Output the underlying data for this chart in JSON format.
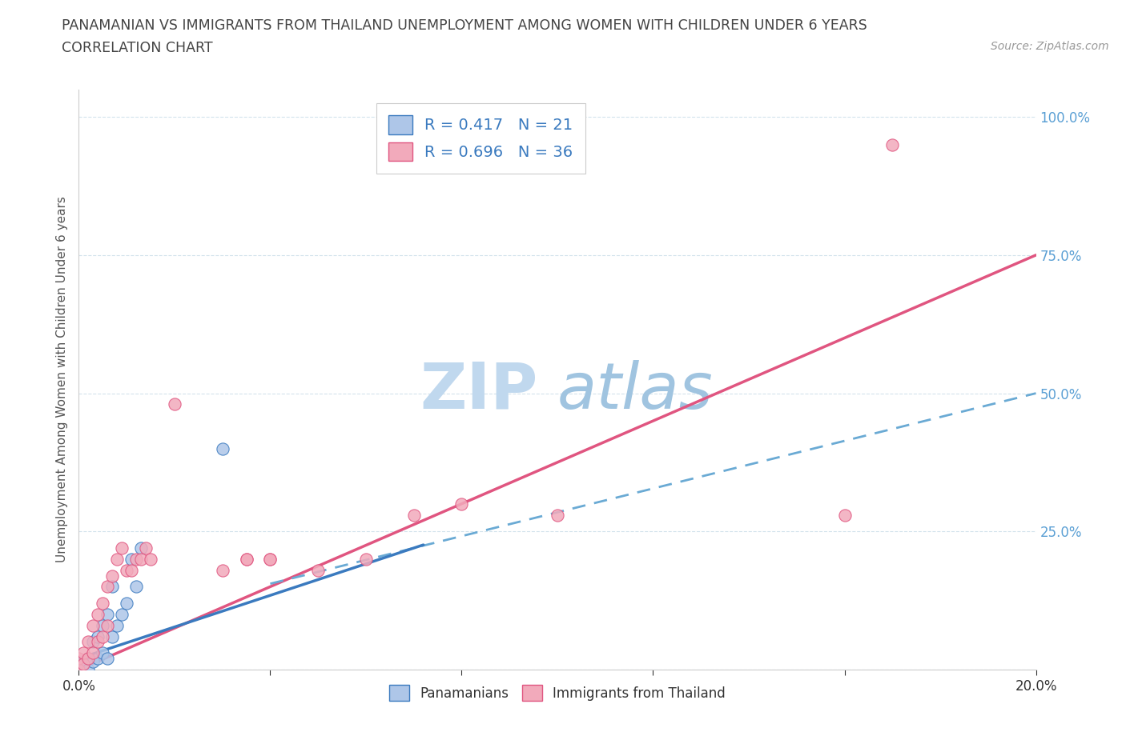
{
  "title_line1": "PANAMANIAN VS IMMIGRANTS FROM THAILAND UNEMPLOYMENT AMONG WOMEN WITH CHILDREN UNDER 6 YEARS",
  "title_line2": "CORRELATION CHART",
  "source": "Source: ZipAtlas.com",
  "ylabel": "Unemployment Among Women with Children Under 6 years",
  "xlim": [
    0.0,
    0.2
  ],
  "ylim": [
    0.0,
    1.05
  ],
  "blue_color": "#aec6e8",
  "pink_color": "#f2aabb",
  "blue_solid_color": "#3a7abf",
  "pink_line_color": "#e05580",
  "blue_dash_color": "#6aaad4",
  "watermark_zip_color": "#c8dff0",
  "watermark_atlas_color": "#a8c8e0",
  "legend_R_blue": "0.417",
  "legend_N_blue": "21",
  "legend_R_pink": "0.696",
  "legend_N_pink": "36",
  "pan_x": [
    0.0,
    0.001,
    0.002,
    0.002,
    0.003,
    0.003,
    0.004,
    0.004,
    0.005,
    0.005,
    0.006,
    0.006,
    0.007,
    0.007,
    0.008,
    0.009,
    0.01,
    0.011,
    0.012,
    0.013,
    0.03
  ],
  "pan_y": [
    0.0,
    0.01,
    0.0,
    0.02,
    0.015,
    0.05,
    0.02,
    0.06,
    0.03,
    0.08,
    0.02,
    0.1,
    0.06,
    0.15,
    0.08,
    0.1,
    0.12,
    0.2,
    0.15,
    0.22,
    0.4
  ],
  "thai_x": [
    0.0,
    0.0,
    0.001,
    0.001,
    0.002,
    0.002,
    0.003,
    0.003,
    0.004,
    0.004,
    0.005,
    0.005,
    0.006,
    0.006,
    0.007,
    0.008,
    0.009,
    0.01,
    0.011,
    0.012,
    0.013,
    0.014,
    0.015,
    0.02,
    0.03,
    0.035,
    0.035,
    0.04,
    0.04,
    0.05,
    0.06,
    0.07,
    0.08,
    0.1,
    0.16,
    0.17
  ],
  "thai_y": [
    0.0,
    0.02,
    0.01,
    0.03,
    0.02,
    0.05,
    0.03,
    0.08,
    0.05,
    0.1,
    0.06,
    0.12,
    0.08,
    0.15,
    0.17,
    0.2,
    0.22,
    0.18,
    0.18,
    0.2,
    0.2,
    0.22,
    0.2,
    0.48,
    0.18,
    0.2,
    0.2,
    0.2,
    0.2,
    0.18,
    0.2,
    0.28,
    0.3,
    0.28,
    0.28,
    0.95
  ]
}
